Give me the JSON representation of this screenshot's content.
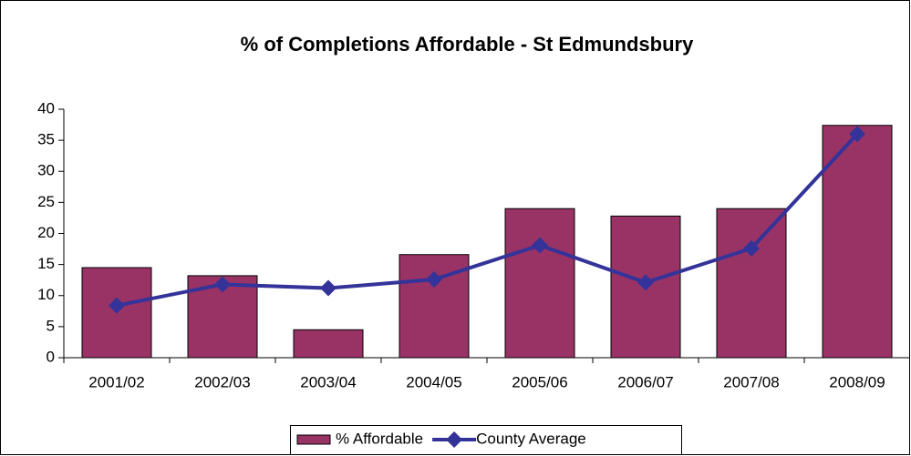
{
  "chart_data": {
    "type": "bar",
    "title": "% of Completions Affordable - St Edmundsbury",
    "categories": [
      "2001/02",
      "2002/03",
      "2003/04",
      "2004/05",
      "2005/06",
      "2006/07",
      "2007/08",
      "2008/09"
    ],
    "series": [
      {
        "name": "% Affordable",
        "type": "bar",
        "color": "#993366",
        "values": [
          14.5,
          13.2,
          4.5,
          16.6,
          24,
          22.8,
          24,
          37.4
        ]
      },
      {
        "name": "County Average",
        "type": "line",
        "color": "#333399",
        "values": [
          8.4,
          11.8,
          11.2,
          12.6,
          18.1,
          12.1,
          17.6,
          36
        ]
      }
    ],
    "ylim": [
      0,
      40
    ],
    "yticks": [
      0,
      5,
      10,
      15,
      20,
      25,
      30,
      35,
      40
    ],
    "grid": false,
    "legend": "bottom"
  }
}
